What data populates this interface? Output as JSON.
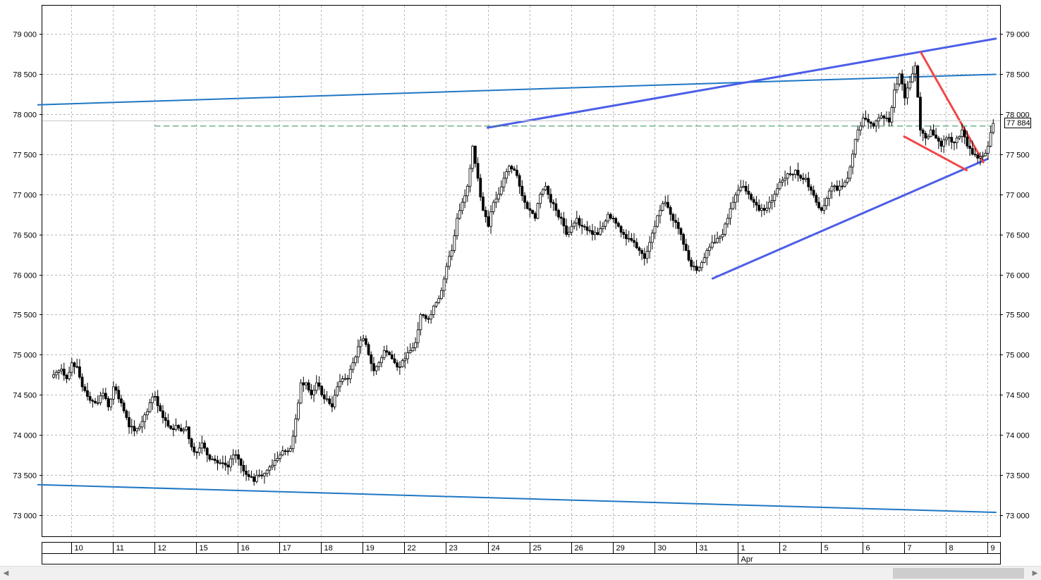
{
  "chart_data": {
    "type": "candlestick",
    "title": "",
    "xlabel": "",
    "ylabel": "",
    "ylim": [
      72750,
      79350
    ],
    "y_ticks": [
      73000,
      73500,
      74000,
      74500,
      75000,
      75500,
      76000,
      76500,
      77000,
      77500,
      78000,
      78500,
      79000
    ],
    "y_tick_labels": [
      "73 000",
      "73 500",
      "74 000",
      "74 500",
      "75 000",
      "75 500",
      "76 000",
      "76 500",
      "77 000",
      "77 500",
      "78 000",
      "78 500",
      "79 000"
    ],
    "x_session_labels": [
      "10",
      "11",
      "12",
      "15",
      "16",
      "17",
      "18",
      "19",
      "22",
      "23",
      "24",
      "25",
      "26",
      "29",
      "30",
      "31",
      "1",
      "2",
      "5",
      "6",
      "7",
      "8",
      "9"
    ],
    "month_label": "Apr",
    "month_label_session": 16,
    "last_price": 77884,
    "last_price_label": "77 884",
    "grid": true,
    "series": [
      {
        "values_close_per_session": [
          [
            74780,
            74820,
            74700,
            74900,
            74850,
            74600,
            74480,
            74420
          ],
          [
            74400,
            74520,
            74350,
            74600,
            74450,
            74300,
            74100,
            74050
          ],
          [
            74100,
            74250,
            74400,
            74480,
            74300,
            74180,
            74080,
            74120
          ],
          [
            74050,
            74100,
            73850,
            73780,
            73900,
            73750,
            73700,
            73650
          ],
          [
            73650,
            73600,
            73750,
            73700,
            73550,
            73480,
            73420,
            73500
          ],
          [
            73520,
            73600,
            73680,
            73750,
            73800,
            73830,
            74200,
            74650
          ],
          [
            74650,
            74500,
            74650,
            74500,
            74450,
            74350,
            74600,
            74700
          ],
          [
            74700,
            74900,
            75100,
            75200,
            75000,
            74800,
            74900,
            75050
          ],
          [
            75000,
            74900,
            74850,
            74950,
            75050,
            75150,
            75500,
            75450
          ],
          [
            75500,
            75650,
            75800,
            76100,
            76300,
            76700,
            76900,
            77100
          ],
          [
            77600,
            77200,
            76800,
            76600,
            76900,
            77000,
            77200,
            77350
          ],
          [
            77300,
            77100,
            76900,
            76800,
            76700,
            77000,
            77100,
            76900
          ],
          [
            76800,
            76700,
            76500,
            76600,
            76700,
            76600,
            76550,
            76500
          ],
          [
            76500,
            76600,
            76750,
            76700,
            76600,
            76500,
            76450,
            76400
          ],
          [
            76300,
            76200,
            76400,
            76600,
            76800,
            76900,
            76750,
            76650
          ],
          [
            76500,
            76300,
            76100,
            76050,
            76150,
            76300,
            76400,
            76450
          ],
          [
            76500,
            76700,
            76900,
            77050,
            77100,
            77000,
            76900,
            76800
          ],
          [
            76800,
            76900,
            77000,
            77150,
            77200,
            77250,
            77300,
            77200
          ],
          [
            77200,
            77050,
            76900,
            76800,
            76950,
            77100,
            77050,
            77100
          ],
          [
            77200,
            77500,
            77800,
            77950,
            77900,
            77850,
            77950,
            77950
          ],
          [
            77900,
            78300,
            78500,
            78200,
            78400,
            78600,
            77800,
            77700
          ],
          [
            77800,
            77700,
            77600,
            77700,
            77650,
            77700,
            77800,
            77600
          ],
          [
            77500,
            77450,
            77480,
            77600,
            77884
          ]
        ]
      }
    ],
    "overlay_lines": [
      {
        "role": "upper channel",
        "color": "#1f77c4",
        "x_session": [
          -0.8,
          22.2
        ],
        "y": [
          78115,
          78495
        ]
      },
      {
        "role": "lower channel",
        "color": "#1f77c4",
        "x_session": [
          -0.8,
          22.2
        ],
        "y": [
          73380,
          73035
        ]
      },
      {
        "role": "resistance",
        "color": "#4c5ee8",
        "x_session": [
          10.0,
          22.2
        ],
        "y": [
          77830,
          78940
        ]
      },
      {
        "role": "support",
        "color": "#4c5ee8",
        "x_session": [
          15.4,
          22.0
        ],
        "y": [
          75950,
          77440
        ]
      },
      {
        "role": "wedge upper",
        "color": "#f04848",
        "x_session": [
          20.4,
          21.9
        ],
        "y": [
          78770,
          77400
        ]
      },
      {
        "role": "wedge lower",
        "color": "#f04848",
        "x_session": [
          20.0,
          21.5
        ],
        "y": [
          77720,
          77300
        ]
      },
      {
        "role": "level",
        "color": "#2e8b57",
        "dashed": true,
        "x_session": [
          2.0,
          22.2
        ],
        "y": [
          77850,
          77850
        ]
      }
    ]
  }
}
